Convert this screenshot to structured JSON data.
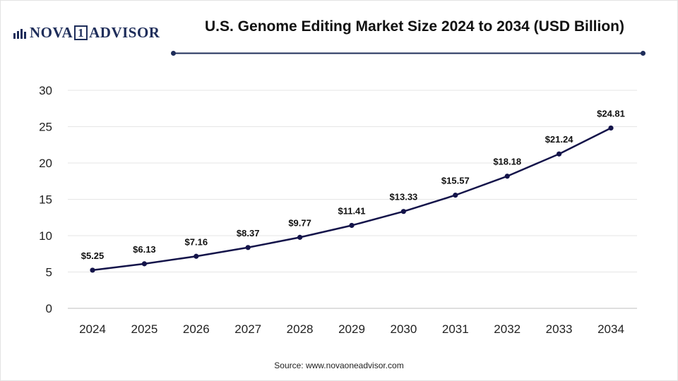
{
  "brand": {
    "logo_prefix": "NOVA",
    "logo_box": "1",
    "logo_suffix": "ADVISOR"
  },
  "chart_data": {
    "type": "line",
    "title": "U.S. Genome Editing Market Size 2024 to 2034 (USD Billion)",
    "xlabel": "",
    "ylabel": "",
    "categories": [
      "2024",
      "2025",
      "2026",
      "2027",
      "2028",
      "2029",
      "2030",
      "2031",
      "2032",
      "2033",
      "2034"
    ],
    "series": [
      {
        "values": [
          5.25,
          6.13,
          7.16,
          8.37,
          9.77,
          11.41,
          13.33,
          15.57,
          18.18,
          21.24,
          24.81
        ],
        "labels": [
          "$5.25",
          "$6.13",
          "$7.16",
          "$8.37",
          "$9.77",
          "$11.41",
          "$13.33",
          "$15.57",
          "$18.18",
          "$21.24",
          "$24.81"
        ]
      }
    ],
    "ylim": [
      0,
      30
    ],
    "yticks": [
      "0",
      "5",
      "10",
      "15",
      "20",
      "25",
      "30"
    ],
    "grid": true,
    "legend": "none",
    "colors": {
      "line": "#14144a",
      "accent": "#1e2d5a",
      "grid": "#e6e6e6"
    }
  },
  "source": "Source: www.novaoneadvisor.com"
}
